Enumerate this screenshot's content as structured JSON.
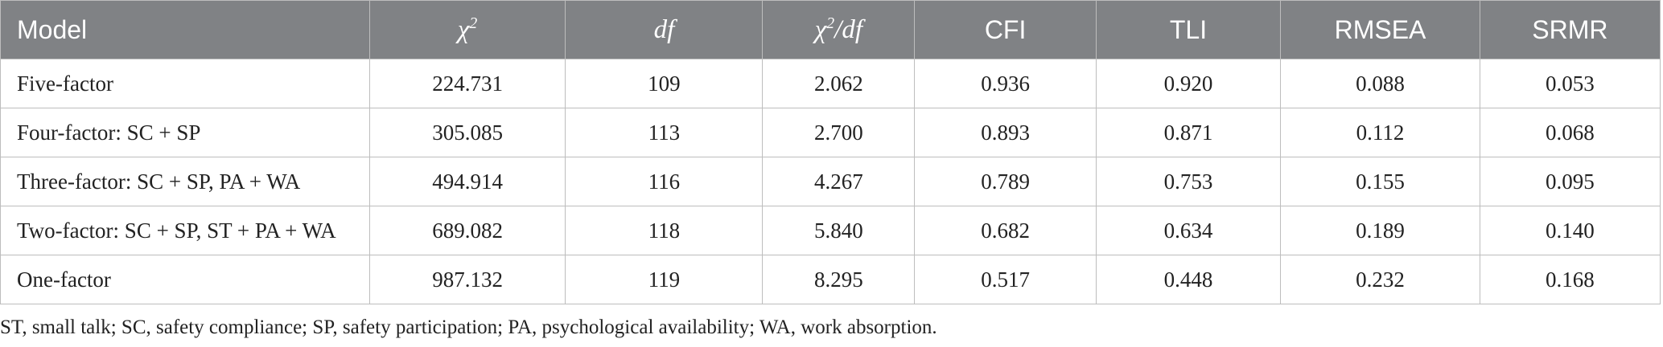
{
  "table": {
    "headers": {
      "model": "Model",
      "chi2_base": "χ",
      "chi2_sup": "2",
      "df": "df",
      "chi2df_base": "χ",
      "chi2df_sup": "2",
      "chi2df_rest": "/df",
      "cfi": "CFI",
      "tli": "TLI",
      "rmsea": "RMSEA",
      "srmr": "SRMR"
    },
    "rows": [
      [
        "Five-factor",
        "224.731",
        "109",
        "2.062",
        "0.936",
        "0.920",
        "0.088",
        "0.053"
      ],
      [
        "Four-factor: SC + SP",
        "305.085",
        "113",
        "2.700",
        "0.893",
        "0.871",
        "0.112",
        "0.068"
      ],
      [
        "Three-factor: SC + SP, PA + WA",
        "494.914",
        "116",
        "4.267",
        "0.789",
        "0.753",
        "0.155",
        "0.095"
      ],
      [
        "Two-factor: SC + SP, ST + PA + WA",
        "689.082",
        "118",
        "5.840",
        "0.682",
        "0.634",
        "0.189",
        "0.140"
      ],
      [
        "One-factor",
        "987.132",
        "119",
        "8.295",
        "0.517",
        "0.448",
        "0.232",
        "0.168"
      ]
    ]
  },
  "footnote": "ST, small talk; SC, safety compliance; SP, safety participation; PA, psychological availability; WA, work absorption.",
  "colors": {
    "header_bg": "#808285",
    "header_text": "#ffffff",
    "border": "#bdbdbd",
    "body_text": "#222222"
  }
}
